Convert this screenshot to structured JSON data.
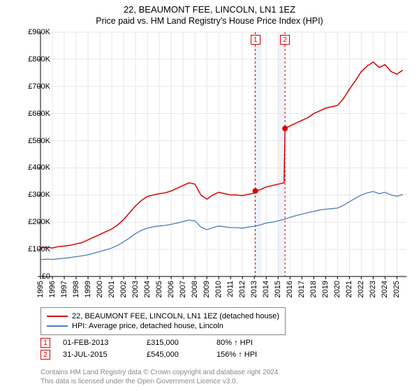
{
  "title": "22, BEAUMONT FEE, LINCOLN, LN1 1EZ",
  "subtitle": "Price paid vs. HM Land Registry's House Price Index (HPI)",
  "chart": {
    "type": "line",
    "background_color": "#ffffff",
    "grid_color": "#e6e6e6",
    "axis_color": "#000000",
    "x_range": [
      1995,
      2025.8
    ],
    "y_range": [
      0,
      900
    ],
    "y_ticks": [
      0,
      100,
      200,
      300,
      400,
      500,
      600,
      700,
      800,
      900
    ],
    "y_tick_labels": [
      "£0",
      "£100K",
      "£200K",
      "£300K",
      "£400K",
      "£500K",
      "£600K",
      "£700K",
      "£800K",
      "£900K"
    ],
    "x_ticks": [
      1995,
      1996,
      1997,
      1998,
      1999,
      2000,
      2001,
      2002,
      2003,
      2004,
      2005,
      2006,
      2007,
      2008,
      2009,
      2010,
      2011,
      2012,
      2013,
      2014,
      2015,
      2016,
      2017,
      2018,
      2019,
      2020,
      2021,
      2022,
      2023,
      2024,
      2025
    ],
    "series": [
      {
        "name": "property",
        "label": "22, BEAUMONT FEE, LINCOLN, LN1 1EZ (detached house)",
        "color": "#d90000",
        "line_width": 1.5,
        "data": [
          [
            1995,
            105
          ],
          [
            1995.5,
            108
          ],
          [
            1996,
            105
          ],
          [
            1996.5,
            110
          ],
          [
            1997,
            112
          ],
          [
            1997.5,
            115
          ],
          [
            1998,
            120
          ],
          [
            1998.5,
            125
          ],
          [
            1999,
            135
          ],
          [
            1999.5,
            145
          ],
          [
            2000,
            155
          ],
          [
            2000.5,
            165
          ],
          [
            2001,
            175
          ],
          [
            2001.5,
            190
          ],
          [
            2002,
            210
          ],
          [
            2002.5,
            235
          ],
          [
            2003,
            260
          ],
          [
            2003.5,
            280
          ],
          [
            2004,
            295
          ],
          [
            2004.5,
            300
          ],
          [
            2005,
            305
          ],
          [
            2005.5,
            308
          ],
          [
            2006,
            315
          ],
          [
            2006.5,
            325
          ],
          [
            2007,
            335
          ],
          [
            2007.5,
            345
          ],
          [
            2008,
            340
          ],
          [
            2008.5,
            300
          ],
          [
            2009,
            285
          ],
          [
            2009.5,
            300
          ],
          [
            2010,
            310
          ],
          [
            2010.5,
            305
          ],
          [
            2011,
            300
          ],
          [
            2011.5,
            300
          ],
          [
            2012,
            298
          ],
          [
            2012.5,
            303
          ],
          [
            2013,
            307
          ],
          [
            2013.08,
            315
          ],
          [
            2013.5,
            320
          ],
          [
            2014,
            330
          ],
          [
            2014.5,
            335
          ],
          [
            2015,
            340
          ],
          [
            2015.5,
            345
          ],
          [
            2015.58,
            545
          ],
          [
            2016,
            555
          ],
          [
            2016.5,
            565
          ],
          [
            2017,
            575
          ],
          [
            2017.5,
            585
          ],
          [
            2018,
            600
          ],
          [
            2018.5,
            610
          ],
          [
            2019,
            620
          ],
          [
            2019.5,
            625
          ],
          [
            2020,
            630
          ],
          [
            2020.5,
            655
          ],
          [
            2021,
            690
          ],
          [
            2021.5,
            720
          ],
          [
            2022,
            755
          ],
          [
            2022.5,
            775
          ],
          [
            2023,
            790
          ],
          [
            2023.5,
            770
          ],
          [
            2024,
            780
          ],
          [
            2024.5,
            755
          ],
          [
            2025,
            745
          ],
          [
            2025.5,
            760
          ]
        ]
      },
      {
        "name": "hpi",
        "label": "HPI: Average price, detached house, Lincoln",
        "color": "#4a7ebb",
        "line_width": 1.3,
        "data": [
          [
            1995,
            62
          ],
          [
            1995.5,
            64
          ],
          [
            1996,
            63
          ],
          [
            1996.5,
            65
          ],
          [
            1997,
            67
          ],
          [
            1997.5,
            70
          ],
          [
            1998,
            73
          ],
          [
            1998.5,
            76
          ],
          [
            1999,
            80
          ],
          [
            1999.5,
            86
          ],
          [
            2000,
            92
          ],
          [
            2000.5,
            98
          ],
          [
            2001,
            105
          ],
          [
            2001.5,
            115
          ],
          [
            2002,
            128
          ],
          [
            2002.5,
            142
          ],
          [
            2003,
            158
          ],
          [
            2003.5,
            170
          ],
          [
            2004,
            178
          ],
          [
            2004.5,
            183
          ],
          [
            2005,
            186
          ],
          [
            2005.5,
            188
          ],
          [
            2006,
            192
          ],
          [
            2006.5,
            197
          ],
          [
            2007,
            203
          ],
          [
            2007.5,
            208
          ],
          [
            2008,
            205
          ],
          [
            2008.5,
            182
          ],
          [
            2009,
            172
          ],
          [
            2009.5,
            180
          ],
          [
            2010,
            186
          ],
          [
            2010.5,
            183
          ],
          [
            2011,
            180
          ],
          [
            2011.5,
            180
          ],
          [
            2012,
            178
          ],
          [
            2012.5,
            182
          ],
          [
            2013,
            185
          ],
          [
            2013.5,
            190
          ],
          [
            2014,
            197
          ],
          [
            2014.5,
            200
          ],
          [
            2015,
            205
          ],
          [
            2015.5,
            210
          ],
          [
            2016,
            218
          ],
          [
            2016.5,
            224
          ],
          [
            2017,
            230
          ],
          [
            2017.5,
            235
          ],
          [
            2018,
            240
          ],
          [
            2018.5,
            245
          ],
          [
            2019,
            248
          ],
          [
            2019.5,
            250
          ],
          [
            2020,
            252
          ],
          [
            2020.5,
            262
          ],
          [
            2021,
            275
          ],
          [
            2021.5,
            288
          ],
          [
            2022,
            300
          ],
          [
            2022.5,
            308
          ],
          [
            2023,
            313
          ],
          [
            2023.5,
            305
          ],
          [
            2024,
            310
          ],
          [
            2024.5,
            300
          ],
          [
            2025,
            296
          ],
          [
            2025.5,
            302
          ]
        ]
      }
    ],
    "markers": [
      {
        "n": "1",
        "x": 2013.08,
        "y": 315,
        "color": "#d90000",
        "band_start": 2013.08,
        "band_end": 2013.6
      },
      {
        "n": "2",
        "x": 2015.58,
        "y": 545,
        "color": "#d90000",
        "band_start": 2015.0,
        "band_end": 2015.58
      }
    ]
  },
  "legend": {
    "items": [
      {
        "color": "#d90000",
        "label": "22, BEAUMONT FEE, LINCOLN, LN1 1EZ (detached house)"
      },
      {
        "color": "#4a7ebb",
        "label": "HPI: Average price, detached house, Lincoln"
      }
    ]
  },
  "sales": [
    {
      "n": "1",
      "color": "#d90000",
      "date": "01-FEB-2013",
      "price": "£315,000",
      "hpi": "80% ↑ HPI"
    },
    {
      "n": "2",
      "color": "#d90000",
      "date": "31-JUL-2015",
      "price": "£545,000",
      "hpi": "156% ↑ HPI"
    }
  ],
  "attribution": {
    "line1": "Contains HM Land Registry data © Crown copyright and database right 2024.",
    "line2": "This data is licensed under the Open Government Licence v3.0."
  }
}
